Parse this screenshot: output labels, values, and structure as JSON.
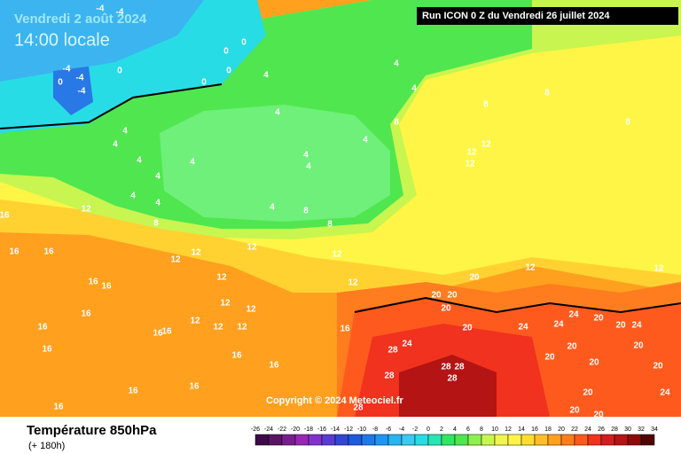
{
  "header": {
    "date": "Vendredi 2 août 2024",
    "time": "14:00 locale",
    "run": "Run ICON 0 Z du Vendredi 26 juillet 2024"
  },
  "footer": {
    "title": "Température 850hPa",
    "lead": "(+ 180h)",
    "copyright": "Copyright © 2024 Meteociel.fr"
  },
  "scale": {
    "ticks": [
      -26,
      -24,
      -22,
      -20,
      -18,
      -16,
      -14,
      -12,
      -10,
      -8,
      -6,
      -4,
      -2,
      0,
      2,
      4,
      6,
      8,
      10,
      12,
      14,
      16,
      18,
      20,
      22,
      24,
      26,
      28,
      30,
      32,
      34
    ],
    "colors": [
      "#3c0a46",
      "#5a1464",
      "#781e8c",
      "#9628b4",
      "#8232c8",
      "#5a3cd2",
      "#3246d2",
      "#1e5adc",
      "#1e78e6",
      "#1e96f0",
      "#28b4f0",
      "#3cc8f0",
      "#28dce6",
      "#28e6b4",
      "#32e664",
      "#50e650",
      "#8cf050",
      "#c8f550",
      "#f0f550",
      "#fff546",
      "#ffdc32",
      "#ffbe28",
      "#ffa01e",
      "#ff7d1e",
      "#ff5a1e",
      "#f0321e",
      "#d21e1e",
      "#b41414",
      "#8c0a0a",
      "#500505"
    ]
  },
  "contour_labels": [
    0,
    0,
    0,
    0,
    0,
    0,
    -4,
    -4,
    -4,
    -4,
    -4,
    4,
    4,
    4,
    4,
    4,
    4,
    4,
    4,
    4,
    4,
    4,
    4,
    4,
    4,
    4,
    8,
    8,
    8,
    8,
    8,
    8,
    8,
    12,
    12,
    12,
    12,
    12,
    12,
    12,
    12,
    12,
    12,
    12,
    12,
    12,
    12,
    12,
    12,
    12,
    16,
    16,
    16,
    16,
    16,
    16,
    16,
    16,
    16,
    16,
    16,
    16,
    16,
    16,
    16,
    16,
    20,
    20,
    20,
    20,
    20,
    20,
    20,
    20,
    20,
    20,
    20,
    20,
    20,
    20,
    20,
    24,
    24,
    24,
    24,
    24,
    24,
    28,
    28,
    28,
    28,
    28,
    28
  ]
}
